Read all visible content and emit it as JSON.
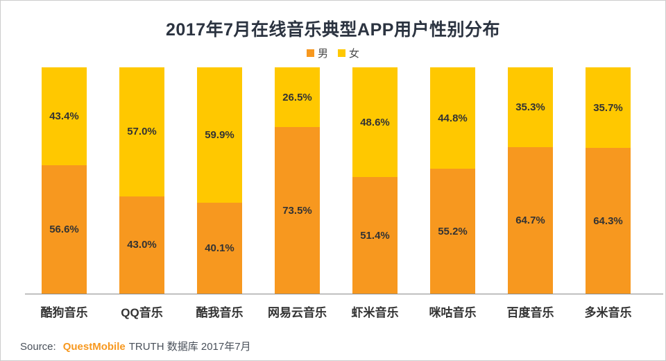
{
  "page": {
    "title": "2017年7月在线音乐典型APP用户性别分布"
  },
  "chart_data": {
    "type": "bar",
    "variant": "stacked-100-percent",
    "title": "2017年7月在线音乐典型APP用户性别分布",
    "categories": [
      "酷狗音乐",
      "QQ音乐",
      "酷我音乐",
      "网易云音乐",
      "虾米音乐",
      "咪咕音乐",
      "百度音乐",
      "多米音乐"
    ],
    "series": [
      {
        "name": "男",
        "color": "#f7981f",
        "stack_position": "bottom",
        "values": [
          56.6,
          43.0,
          40.1,
          73.5,
          51.4,
          55.2,
          64.7,
          64.3
        ],
        "labels": [
          "56.6%",
          "43.0%",
          "40.1%",
          "73.5%",
          "51.4%",
          "55.2%",
          "64.7%",
          "64.3%"
        ]
      },
      {
        "name": "女",
        "color": "#ffc800",
        "stack_position": "top",
        "values": [
          43.4,
          57.0,
          59.9,
          26.5,
          48.6,
          44.8,
          35.3,
          35.7
        ],
        "labels": [
          "43.4%",
          "57.0%",
          "59.9%",
          "26.5%",
          "48.6%",
          "44.8%",
          "35.3%",
          "35.7%"
        ]
      }
    ],
    "ylim": [
      0,
      100
    ],
    "grid": false,
    "legend_position": "top-center",
    "value_suffix": "%"
  },
  "source": {
    "label": "Source:",
    "brand": "QuestMobile",
    "text": "TRUTH 数据库 2017年7月"
  },
  "colors": {
    "male": "#f7981f",
    "female": "#ffc800",
    "title_text": "#2b3340",
    "value_text": "#333333",
    "axis_line": "#8a8a8a",
    "page_border": "#cccccc"
  }
}
